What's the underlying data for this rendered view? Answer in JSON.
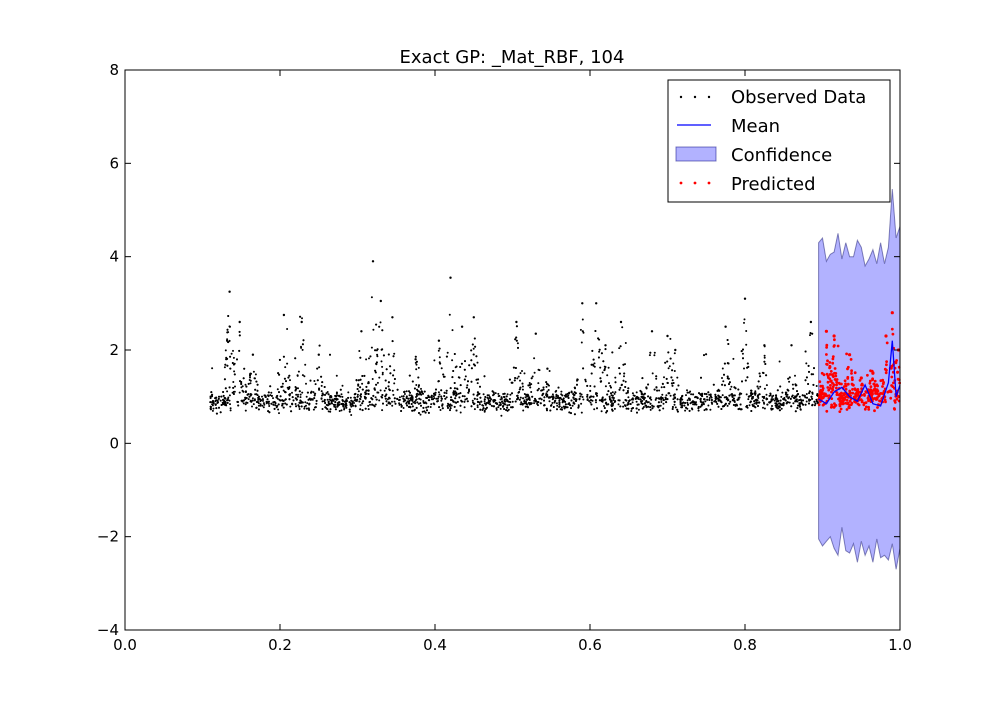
{
  "chart_data": {
    "type": "scatter",
    "title": "Exact GP: _Mat_RBF, 104",
    "xlabel": "",
    "ylabel": "",
    "xlim": [
      0.0,
      1.0
    ],
    "ylim": [
      -4,
      8
    ],
    "x_ticks": [
      0.0,
      0.2,
      0.4,
      0.6,
      0.8,
      1.0
    ],
    "x_tick_labels": [
      "0.0",
      "0.2",
      "0.4",
      "0.6",
      "0.8",
      "1.0"
    ],
    "y_ticks": [
      -4,
      -2,
      0,
      2,
      4,
      6,
      8
    ],
    "y_tick_labels": [
      "−4",
      "−2",
      "0",
      "2",
      "4",
      "6",
      "8"
    ],
    "grid": false,
    "legend_position": "top-right",
    "observed_data": {
      "name": "Observed Data",
      "color": "#000000",
      "x_range": [
        0.11,
        0.895
      ],
      "baseline": 0.9,
      "spread": 0.22,
      "spike_peaks": [
        {
          "x": 0.135,
          "y": 3.25
        },
        {
          "x": 0.148,
          "y": 2.6
        },
        {
          "x": 0.165,
          "y": 1.9
        },
        {
          "x": 0.205,
          "y": 2.75
        },
        {
          "x": 0.228,
          "y": 2.6
        },
        {
          "x": 0.25,
          "y": 1.9
        },
        {
          "x": 0.305,
          "y": 2.4
        },
        {
          "x": 0.32,
          "y": 3.9
        },
        {
          "x": 0.33,
          "y": 3.05
        },
        {
          "x": 0.345,
          "y": 2.7
        },
        {
          "x": 0.375,
          "y": 1.8
        },
        {
          "x": 0.405,
          "y": 2.2
        },
        {
          "x": 0.42,
          "y": 3.55
        },
        {
          "x": 0.435,
          "y": 2.5
        },
        {
          "x": 0.45,
          "y": 2.7
        },
        {
          "x": 0.505,
          "y": 2.6
        },
        {
          "x": 0.53,
          "y": 2.35
        },
        {
          "x": 0.545,
          "y": 1.6
        },
        {
          "x": 0.59,
          "y": 3.0
        },
        {
          "x": 0.608,
          "y": 3.0
        },
        {
          "x": 0.62,
          "y": 2.1
        },
        {
          "x": 0.64,
          "y": 2.6
        },
        {
          "x": 0.68,
          "y": 2.4
        },
        {
          "x": 0.7,
          "y": 2.3
        },
        {
          "x": 0.71,
          "y": 2.0
        },
        {
          "x": 0.775,
          "y": 2.5
        },
        {
          "x": 0.8,
          "y": 3.1
        },
        {
          "x": 0.825,
          "y": 2.1
        },
        {
          "x": 0.86,
          "y": 2.1
        },
        {
          "x": 0.885,
          "y": 2.6
        }
      ]
    },
    "mean": {
      "name": "Mean",
      "color": "#0000ff",
      "x": [
        0.895,
        0.905,
        0.915,
        0.925,
        0.935,
        0.945,
        0.955,
        0.965,
        0.975,
        0.985,
        0.99,
        0.995,
        1.0
      ],
      "y": [
        0.95,
        0.85,
        1.1,
        1.2,
        1.0,
        0.9,
        1.25,
        0.85,
        0.8,
        1.3,
        2.2,
        1.0,
        1.25
      ]
    },
    "confidence": {
      "name": "Confidence",
      "color": "#0000ff",
      "x": [
        0.895,
        0.9,
        0.905,
        0.91,
        0.915,
        0.92,
        0.925,
        0.93,
        0.935,
        0.94,
        0.945,
        0.95,
        0.955,
        0.96,
        0.965,
        0.97,
        0.975,
        0.98,
        0.985,
        0.99,
        0.995,
        1.0
      ],
      "upper": [
        4.3,
        4.4,
        3.9,
        4.05,
        4.1,
        4.5,
        3.95,
        4.3,
        4.0,
        4.0,
        4.35,
        4.2,
        3.8,
        3.95,
        4.15,
        3.85,
        4.3,
        3.85,
        4.2,
        5.45,
        4.4,
        4.65
      ],
      "lower": [
        -2.05,
        -2.2,
        -2.1,
        -2.0,
        -2.25,
        -2.4,
        -1.8,
        -2.3,
        -2.35,
        -2.15,
        -2.55,
        -2.1,
        -2.4,
        -2.2,
        -2.55,
        -2.05,
        -2.45,
        -2.4,
        -2.5,
        -2.15,
        -2.7,
        -2.25
      ]
    },
    "predicted": {
      "name": "Predicted",
      "color": "#ff0000",
      "x_range": [
        0.895,
        1.0
      ],
      "baseline": 0.95,
      "spread": 0.22,
      "spike_peaks": [
        {
          "x": 0.905,
          "y": 2.4
        },
        {
          "x": 0.915,
          "y": 2.3
        },
        {
          "x": 0.935,
          "y": 1.9
        },
        {
          "x": 0.95,
          "y": 1.4
        },
        {
          "x": 0.965,
          "y": 1.5
        },
        {
          "x": 0.982,
          "y": 2.3
        },
        {
          "x": 0.99,
          "y": 2.8
        },
        {
          "x": 0.998,
          "y": 2.0
        }
      ]
    }
  }
}
